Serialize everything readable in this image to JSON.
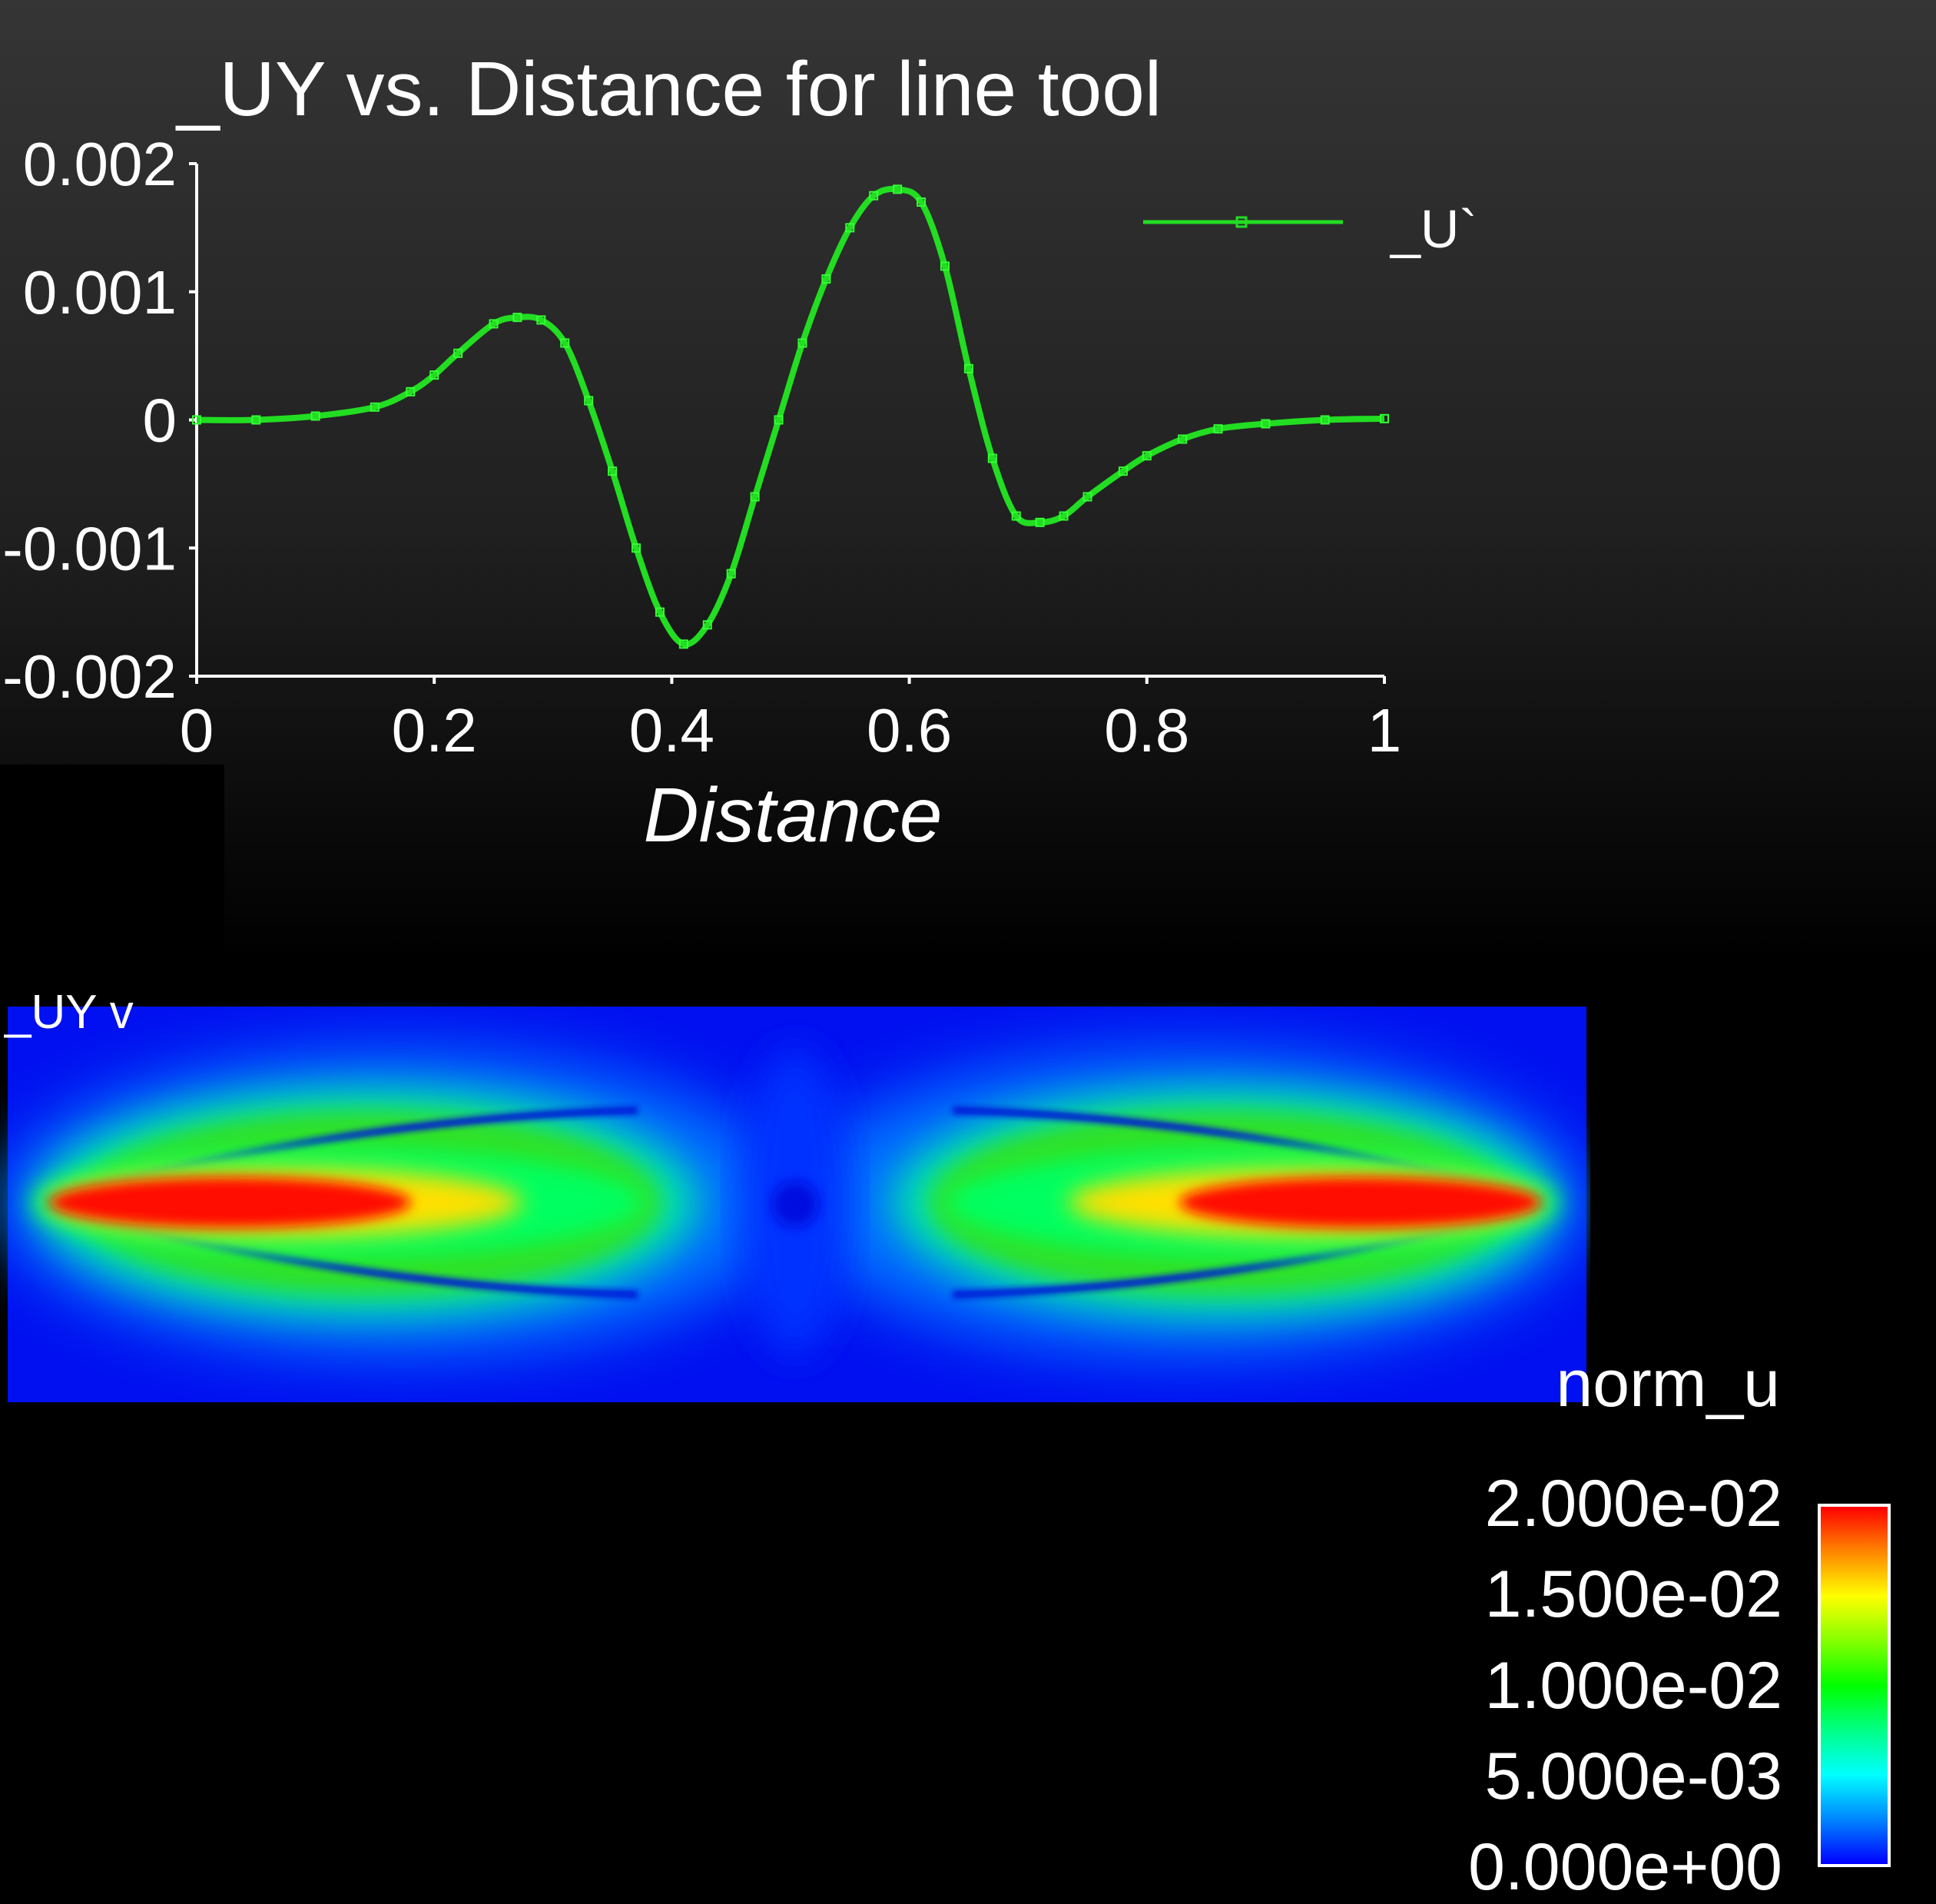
{
  "chart_data": [
    {
      "type": "line",
      "title": "_UY vs. Distance for line tool",
      "xlabel": "Distance",
      "ylabel": "",
      "xlim": [
        0,
        1
      ],
      "ylim": [
        -0.002,
        0.002
      ],
      "x_ticks": [
        "0",
        "0.2",
        "0.4",
        "0.6",
        "0.8",
        "1"
      ],
      "y_ticks": [
        "0.002",
        "0.001",
        "0",
        "-0.001",
        "-0.002"
      ],
      "legend": {
        "position": "top-right",
        "entries": [
          "_U`"
        ]
      },
      "grid": false,
      "series": [
        {
          "name": "_U`",
          "color": "#22dd22",
          "x": [
            0,
            0.05,
            0.1,
            0.15,
            0.18,
            0.2,
            0.22,
            0.25,
            0.27,
            0.29,
            0.31,
            0.33,
            0.35,
            0.37,
            0.39,
            0.41,
            0.43,
            0.45,
            0.47,
            0.49,
            0.51,
            0.53,
            0.55,
            0.57,
            0.59,
            0.61,
            0.63,
            0.65,
            0.67,
            0.69,
            0.71,
            0.73,
            0.75,
            0.78,
            0.8,
            0.83,
            0.86,
            0.9,
            0.95,
            1.0
          ],
          "y": [
            0,
            0,
            3e-05,
            0.0001,
            0.00022,
            0.00035,
            0.00052,
            0.00075,
            0.0008,
            0.00078,
            0.0006,
            0.00015,
            -0.0004,
            -0.001,
            -0.0015,
            -0.00175,
            -0.0016,
            -0.0012,
            -0.0006,
            0.0,
            0.0006,
            0.0011,
            0.0015,
            0.00175,
            0.0018,
            0.0017,
            0.0012,
            0.0004,
            -0.0003,
            -0.00075,
            -0.0008,
            -0.00075,
            -0.0006,
            -0.0004,
            -0.00028,
            -0.00015,
            -7e-05,
            -3e-05,
            0,
            1e-05
          ]
        }
      ]
    },
    {
      "type": "heatmap",
      "title": "",
      "colorbar": {
        "title": "norm_u",
        "ticks": [
          "2.000e-02",
          "1.500e-02",
          "1.000e-02",
          "5.000e-03",
          "0.000e+00"
        ],
        "range": [
          0,
          0.02
        ]
      }
    }
  ],
  "overlay_label": "_UY v"
}
